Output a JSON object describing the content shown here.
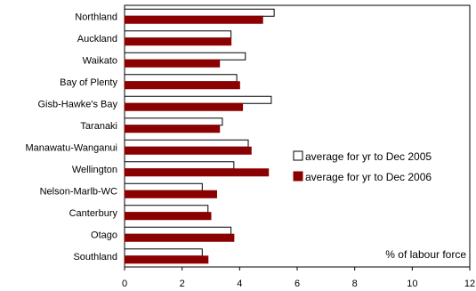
{
  "chart_data": {
    "type": "bar",
    "orientation": "horizontal",
    "categories": [
      "Northland",
      "Auckland",
      "Waikato",
      "Bay of Plenty",
      "Gisb-Hawke's Bay",
      "Taranaki",
      "Manawatu-Wanganui",
      "Wellington",
      "Nelson-Marlb-WC",
      "Canterbury",
      "Otago",
      "Southland"
    ],
    "series": [
      {
        "name": "average for yr to Dec 2005",
        "fill": "#ffffff",
        "stroke": "#000000",
        "values": [
          5.2,
          3.7,
          4.2,
          3.9,
          5.1,
          3.4,
          4.3,
          3.8,
          2.7,
          2.9,
          3.7,
          2.7
        ]
      },
      {
        "name": "average for yr to Dec 2006",
        "fill": "#8b0000",
        "stroke": "#8b0000",
        "values": [
          4.8,
          3.7,
          3.3,
          4.0,
          4.1,
          3.3,
          4.4,
          5.0,
          3.2,
          3.0,
          3.8,
          2.9
        ]
      }
    ],
    "xlim": [
      0,
      12
    ],
    "xticks": [
      0,
      2,
      4,
      6,
      8,
      10,
      12
    ],
    "annotation": "% of labour force",
    "legend_position": "right"
  }
}
